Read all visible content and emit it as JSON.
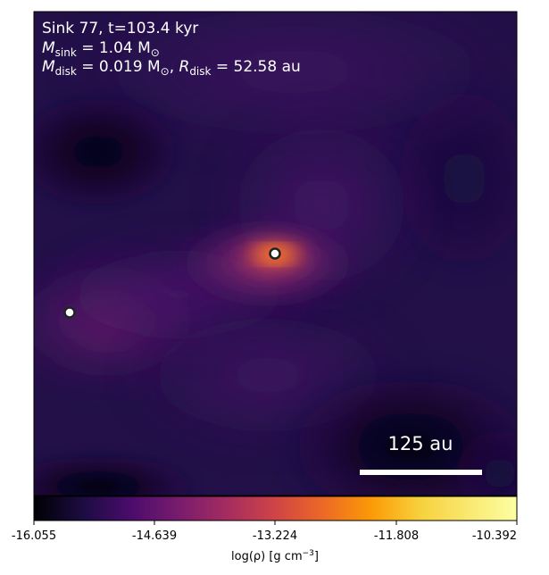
{
  "annotation": {
    "line1": "Sink 77, t=103.4 kyr",
    "line2_symbol": "M",
    "line2_sub": "sink",
    "line2_value": " = 1.04 M",
    "line2_unit_sub": "⊙",
    "line3_symbol": "M",
    "line3_sub": "disk",
    "line3_value": " = 0.019 M",
    "line3_unit_sub": "⊙",
    "line3_sep": ", ",
    "line3_symbol2": "R",
    "line3_sub2": "disk",
    "line3_value2": " = 52.58 au"
  },
  "scalebar": {
    "label": "125 au"
  },
  "colorbar": {
    "ticks": [
      "-16.055",
      "-14.639",
      "-13.224",
      "-11.808",
      "-10.392"
    ],
    "label_prefix": "log(ρ) [g cm",
    "label_exp": "−3",
    "label_suffix": "]",
    "colormap": "inferno-like"
  },
  "sinks": [
    {
      "name": "sink-77"
    },
    {
      "name": "companion-sink"
    }
  ],
  "colors": {
    "background": "#1e0f46",
    "disk_core": "#e8702a"
  }
}
